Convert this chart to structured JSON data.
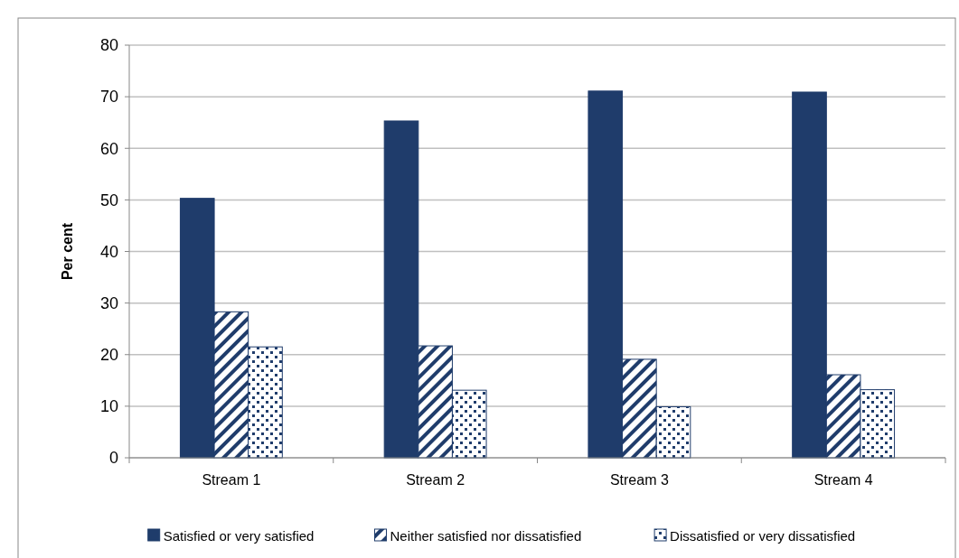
{
  "chart_data": {
    "type": "bar",
    "ylabel": "Per cent",
    "categories": [
      "Stream 1",
      "Stream 2",
      "Stream 3",
      "Stream 4"
    ],
    "series": [
      {
        "name": "Satisfied or very satisfied",
        "color": "#1f3c6b",
        "values": [
          50.3,
          65.3,
          71.1,
          70.9
        ]
      },
      {
        "name": "Neither satisfied nor dissatisfied",
        "color": "#1f3c6b",
        "values": [
          28.3,
          21.7,
          19.1,
          16.1
        ]
      },
      {
        "name": "Dissatisfied or very dissatisfied",
        "color": "#1f3c6b",
        "values": [
          21.5,
          13.1,
          9.9,
          13.2
        ]
      }
    ],
    "ylim": [
      0,
      80
    ],
    "yticks": [
      0,
      10,
      20,
      30,
      40,
      50,
      60,
      70,
      80
    ],
    "grid": "y",
    "legend": "bottom"
  }
}
